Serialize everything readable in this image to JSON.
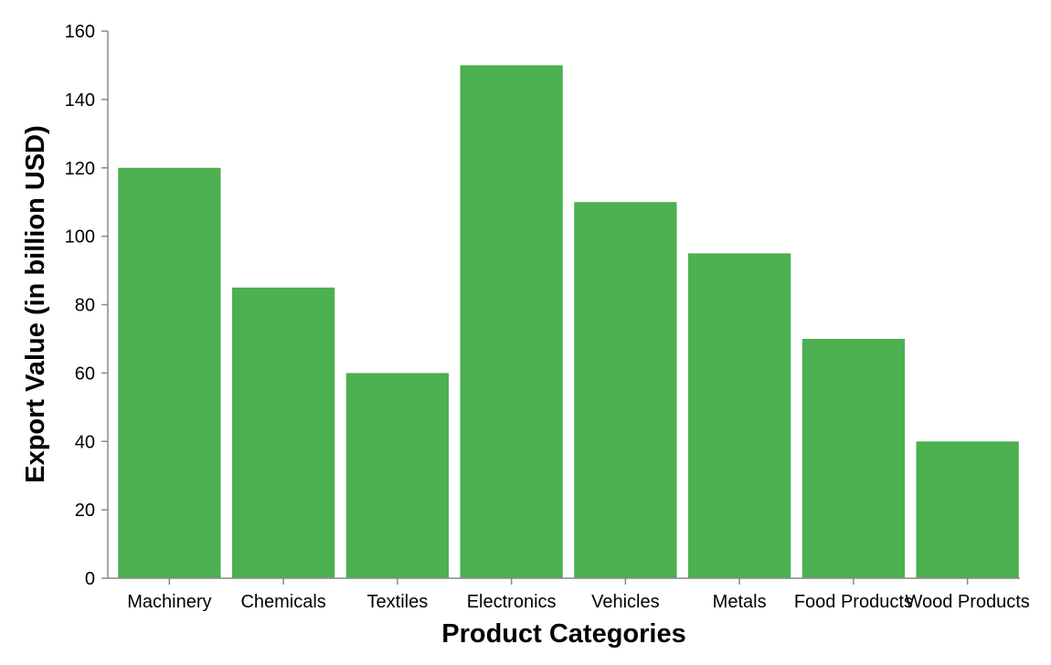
{
  "chart_data": {
    "type": "bar",
    "title": "",
    "xlabel": "Product Categories",
    "ylabel": "Export Value (in billion USD)",
    "categories": [
      "Machinery",
      "Chemicals",
      "Textiles",
      "Electronics",
      "Vehicles",
      "Metals",
      "Food Products",
      "Wood Products"
    ],
    "values": [
      120,
      85,
      60,
      150,
      110,
      95,
      70,
      40
    ],
    "ylim": [
      0,
      160
    ],
    "yticks": [
      0,
      20,
      40,
      60,
      80,
      100,
      120,
      140,
      160
    ],
    "grid": false,
    "legend": "none",
    "bar_color": "#4caf50"
  }
}
